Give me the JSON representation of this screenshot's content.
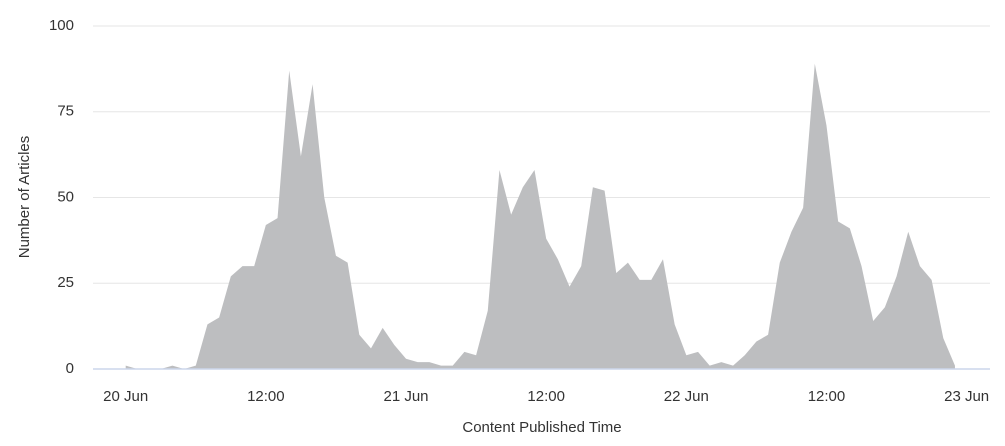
{
  "chart_data": {
    "type": "area",
    "x_label": "Content Published Time",
    "y_label": "Number of Articles",
    "x": [
      0,
      1,
      2,
      3,
      4,
      5,
      6,
      7,
      8,
      9,
      10,
      11,
      12,
      13,
      14,
      15,
      16,
      17,
      18,
      19,
      20,
      21,
      22,
      23,
      24,
      25,
      26,
      27,
      28,
      29,
      30,
      31,
      32,
      33,
      34,
      35,
      36,
      37,
      38,
      39,
      40,
      41,
      42,
      43,
      44,
      45,
      46,
      47,
      48,
      49,
      50,
      51,
      52,
      53,
      54,
      55,
      56,
      57,
      58,
      59,
      60,
      61,
      62,
      63,
      64,
      65,
      66,
      67,
      68,
      69,
      70,
      71
    ],
    "values": [
      1,
      0,
      0,
      0,
      1,
      0,
      1,
      13,
      15,
      27,
      30,
      30,
      42,
      44,
      87,
      62,
      83,
      50,
      33,
      31,
      10,
      6,
      12,
      7,
      3,
      2,
      2,
      1,
      1,
      5,
      4,
      17,
      58,
      45,
      53,
      58,
      38,
      32,
      24,
      30,
      53,
      52,
      28,
      31,
      26,
      26,
      32,
      13,
      4,
      5,
      1,
      2,
      1,
      4,
      8,
      10,
      31,
      40,
      47,
      89,
      71,
      43,
      41,
      30,
      14,
      18,
      27,
      40,
      30,
      26,
      9,
      1
    ],
    "color": "#bdbec0",
    "xlim": [
      -2.8,
      74
    ],
    "xticks": [
      {
        "value": 0,
        "label": "20 Jun"
      },
      {
        "value": 12,
        "label": "12:00"
      },
      {
        "value": 24,
        "label": "21 Jun"
      },
      {
        "value": 36,
        "label": "12:00"
      },
      {
        "value": 48,
        "label": "22 Jun"
      },
      {
        "value": 60,
        "label": "12:00"
      },
      {
        "value": 72,
        "label": "23 Jun"
      }
    ],
    "ylim": [
      0,
      100
    ],
    "yticks": [
      0,
      25,
      50,
      75,
      100
    ],
    "grid": true
  }
}
